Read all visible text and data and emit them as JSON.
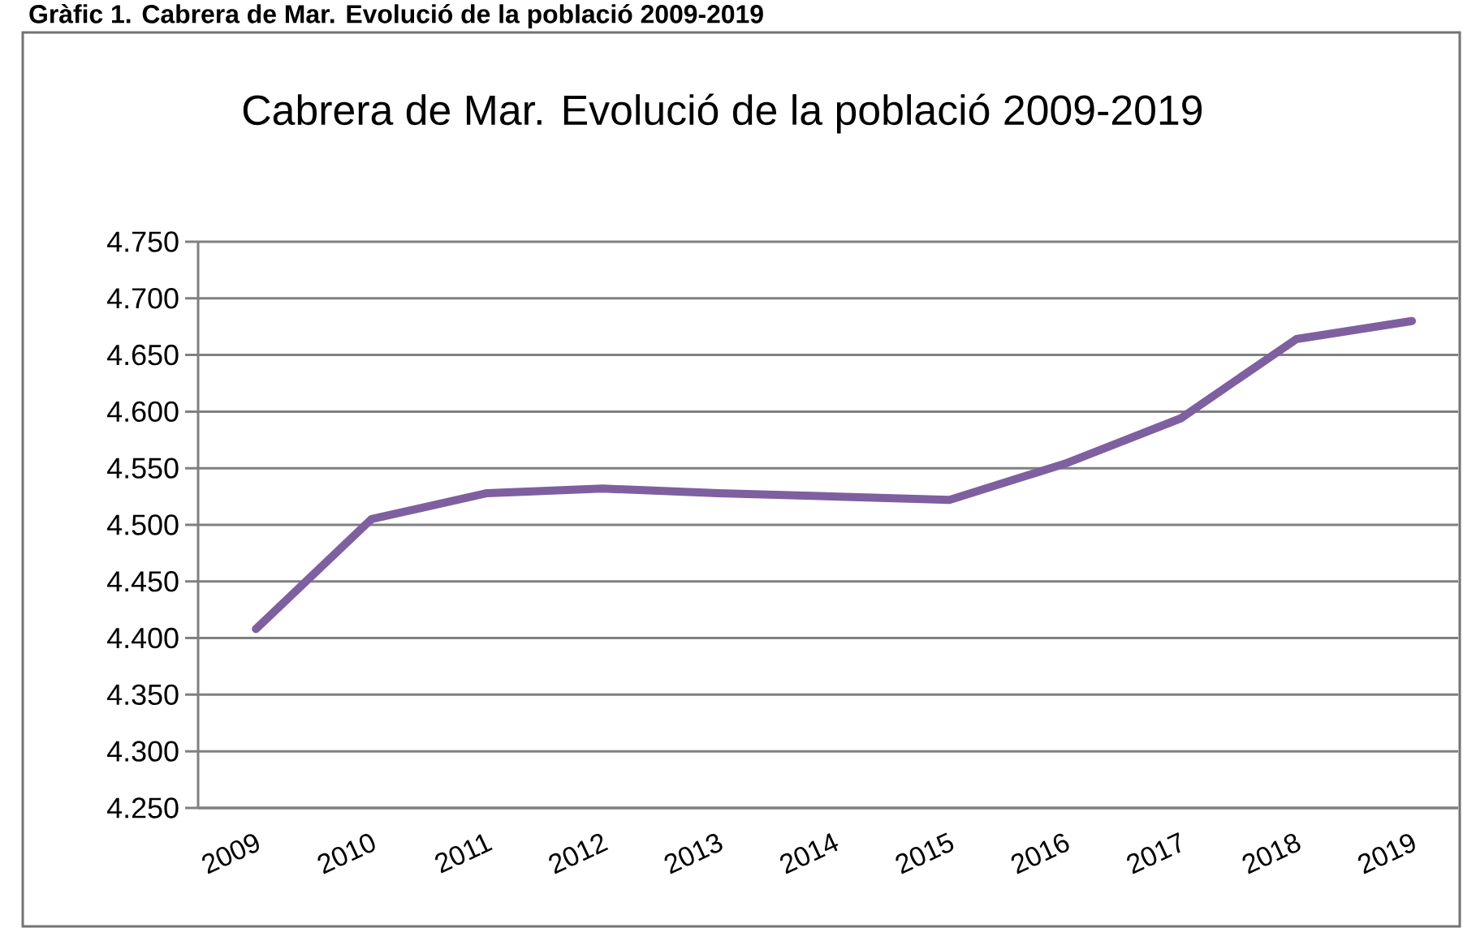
{
  "chart_data": {
    "type": "line",
    "title": "Cabrera de Mar. Evolució de la població 2009-2019",
    "annotations": [
      "Gràfic 1. Cabrera de Mar. Evolució de la població 2009-2019"
    ],
    "categories": [
      "2009",
      "2010",
      "2011",
      "2012",
      "2013",
      "2014",
      "2015",
      "2016",
      "2017",
      "2018",
      "2019"
    ],
    "series": [
      {
        "color": "#7e60a0",
        "values": [
          4408,
          4505,
          4528,
          4532,
          4528,
          4525,
          4522,
          4554,
          4594,
          4664,
          4680
        ]
      }
    ],
    "ylim": [
      4250,
      4750
    ],
    "yticks": [
      {
        "value": 4250,
        "label": "4.250"
      },
      {
        "value": 4300,
        "label": "4.300"
      },
      {
        "value": 4350,
        "label": "4.350"
      },
      {
        "value": 4400,
        "label": "4.400"
      },
      {
        "value": 4450,
        "label": "4.450"
      },
      {
        "value": 4500,
        "label": "4.500"
      },
      {
        "value": 4550,
        "label": "4.550"
      },
      {
        "value": 4600,
        "label": "4.600"
      },
      {
        "value": 4650,
        "label": "4.650"
      },
      {
        "value": 4700,
        "label": "4.700"
      },
      {
        "value": 4750,
        "label": "4.750"
      }
    ],
    "grid": "y",
    "marker": "none",
    "line_style": "solid"
  }
}
